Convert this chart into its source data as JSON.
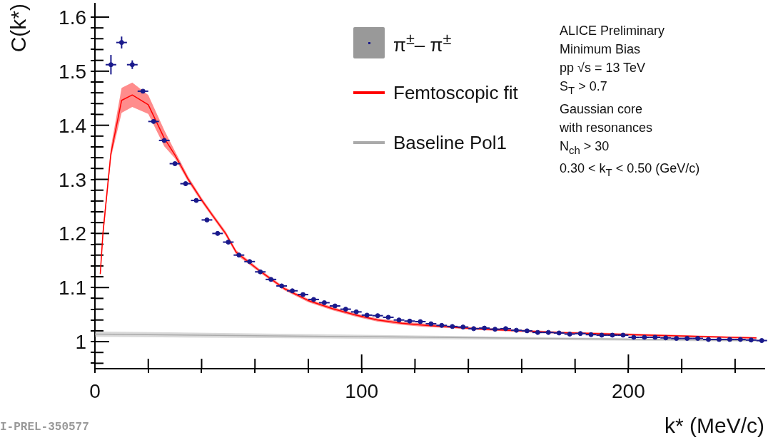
{
  "chart_data": {
    "type": "scatter",
    "xlabel": "k* (MeV/c)",
    "ylabel": "C(k*)",
    "xlim": [
      0,
      251
    ],
    "ylim": [
      0.95,
      1.625
    ],
    "xticks": [
      0,
      {
        "value": 20,
        "label": null
      },
      {
        "value": 40,
        "label": null
      },
      {
        "value": 60,
        "label": null
      },
      {
        "value": 80,
        "label": null
      },
      100,
      {
        "value": 120,
        "label": null
      },
      {
        "value": 140,
        "label": null
      },
      {
        "value": 160,
        "label": null
      },
      {
        "value": 180,
        "label": null
      },
      200,
      {
        "value": 220,
        "label": null
      },
      {
        "value": 240,
        "label": null
      }
    ],
    "yticks": [
      {
        "value": 0.96,
        "label": null
      },
      {
        "value": 0.98,
        "label": null
      },
      1,
      {
        "value": 1.02,
        "label": null
      },
      {
        "value": 1.04,
        "label": null
      },
      {
        "value": 1.06,
        "label": null
      },
      {
        "value": 1.08,
        "label": null
      },
      1.1,
      {
        "value": 1.12,
        "label": null
      },
      {
        "value": 1.14,
        "label": null
      },
      {
        "value": 1.16,
        "label": null
      },
      {
        "value": 1.18,
        "label": null
      },
      1.2,
      {
        "value": 1.22,
        "label": null
      },
      {
        "value": 1.24,
        "label": null
      },
      {
        "value": 1.26,
        "label": null
      },
      {
        "value": 1.28,
        "label": null
      },
      1.3,
      {
        "value": 1.32,
        "label": null
      },
      {
        "value": 1.34,
        "label": null
      },
      {
        "value": 1.36,
        "label": null
      },
      {
        "value": 1.38,
        "label": null
      },
      1.4,
      {
        "value": 1.42,
        "label": null
      },
      {
        "value": 1.44,
        "label": null
      },
      {
        "value": 1.46,
        "label": null
      },
      {
        "value": 1.48,
        "label": null
      },
      1.5,
      {
        "value": 1.52,
        "label": null
      },
      {
        "value": 1.54,
        "label": null
      },
      {
        "value": 1.56,
        "label": null
      },
      {
        "value": 1.58,
        "label": null
      },
      1.6
    ],
    "grid": false,
    "legend": "top right",
    "marker": "none",
    "series": [
      {
        "name": "π$^{±}$– π$^{±}$",
        "marker": "circle",
        "color": "#1a1a8c",
        "x": [
          6,
          10,
          14,
          18,
          22,
          26,
          30,
          34,
          38,
          42,
          46,
          50,
          54,
          58,
          62,
          66,
          70,
          74,
          78,
          82,
          86,
          90,
          94,
          98,
          102,
          106,
          110,
          114,
          118,
          122,
          126,
          130,
          134,
          138,
          142,
          146,
          150,
          154,
          158,
          162,
          166,
          170,
          174,
          178,
          182,
          186,
          190,
          194,
          198,
          202,
          206,
          210,
          214,
          218,
          222,
          226,
          230,
          234,
          238,
          242,
          246,
          250
        ],
        "values": [
          1.512,
          1.553,
          1.512,
          1.463,
          1.407,
          1.372,
          1.329,
          1.292,
          1.261,
          1.225,
          1.2,
          1.184,
          1.16,
          1.148,
          1.129,
          1.115,
          1.103,
          1.094,
          1.087,
          1.078,
          1.072,
          1.066,
          1.06,
          1.055,
          1.049,
          1.048,
          1.045,
          1.04,
          1.038,
          1.037,
          1.033,
          1.03,
          1.028,
          1.027,
          1.024,
          1.025,
          1.023,
          1.024,
          1.021,
          1.02,
          1.017,
          1.017,
          1.016,
          1.014,
          1.015,
          1.013,
          1.012,
          1.012,
          1.012,
          1.008,
          1.008,
          1.008,
          1.007,
          1.006,
          1.006,
          1.006,
          1.004,
          1.004,
          1.004,
          1.004,
          1.003,
          1.002
        ],
        "errors": [
          0.018,
          0.011,
          0.008,
          null,
          null,
          null,
          null,
          null,
          null,
          null,
          null,
          null,
          null,
          null,
          null,
          null,
          null,
          null,
          null,
          null,
          null,
          null,
          null,
          null,
          null,
          null,
          null,
          null,
          null,
          null,
          null,
          null,
          null,
          null,
          null,
          null,
          null,
          null,
          null,
          null,
          null,
          null,
          null,
          null,
          null,
          null,
          null,
          null,
          null,
          null,
          null,
          null,
          null,
          null,
          null,
          null,
          null,
          null,
          null,
          null,
          null,
          null
        ],
        "xerrors": [
          2,
          2,
          2,
          2,
          2,
          2,
          2,
          2,
          2,
          2,
          2,
          2,
          2,
          2,
          2,
          2,
          2,
          2,
          2,
          2,
          2,
          2,
          2,
          2,
          2,
          2,
          2,
          2,
          2,
          2,
          2,
          2,
          2,
          2,
          2,
          2,
          2,
          2,
          2,
          2,
          2,
          2,
          2,
          2,
          2,
          2,
          2,
          2,
          2,
          2,
          2,
          2,
          2,
          2,
          2,
          2,
          2,
          2,
          2,
          2,
          2,
          2
        ]
      },
      {
        "name": "Femtoscopic fit",
        "type": "line",
        "color": "#ff0000",
        "x": [
          2,
          3,
          6,
          10,
          14,
          20,
          26,
          30,
          35,
          40,
          44,
          49,
          53,
          62,
          71,
          80,
          89,
          98,
          106,
          115,
          124,
          133,
          142,
          151,
          173,
          208,
          248
        ],
        "values": [
          1.125,
          1.2,
          1.348,
          1.446,
          1.456,
          1.438,
          1.376,
          1.345,
          1.3,
          1.262,
          1.234,
          1.2,
          1.165,
          1.13,
          1.098,
          1.076,
          1.061,
          1.049,
          1.04,
          1.034,
          1.03,
          1.027,
          1.024,
          1.022,
          1.017,
          1.012,
          1.007
        ],
        "lower": [
          1.12,
          1.19,
          1.34,
          1.423,
          1.434,
          1.421,
          1.361,
          1.339,
          1.295,
          1.258,
          1.23,
          1.196,
          1.161,
          1.127,
          1.095,
          1.073,
          1.058,
          1.046,
          1.037,
          1.031,
          1.027,
          1.025,
          1.022,
          1.02,
          1.015,
          1.01,
          1.005
        ],
        "upper": [
          1.13,
          1.21,
          1.36,
          1.469,
          1.479,
          1.456,
          1.391,
          1.352,
          1.305,
          1.266,
          1.238,
          1.204,
          1.169,
          1.133,
          1.101,
          1.079,
          1.064,
          1.052,
          1.043,
          1.037,
          1.033,
          1.029,
          1.026,
          1.024,
          1.019,
          1.014,
          1.008
        ]
      },
      {
        "name": "Baseline Pol1",
        "type": "line",
        "color": "#aaaaaa",
        "x": [
          0,
          250
        ],
        "values": [
          1.014,
          1.002
        ],
        "lower": [
          1.009,
          1.0
        ],
        "upper": [
          1.019,
          1.003
        ]
      }
    ],
    "annotations": [
      "ALICE Preliminary",
      "Minimum Bias",
      "pp √s = 13 TeV",
      "S$_{T}$ > 0.7",
      "Gaussian core",
      "with resonances",
      "N$_{ch}$ > 30",
      "0.30 < k$_{T}$ < 0.50 (GeV/c)",
      "I-PREL-350577"
    ]
  }
}
